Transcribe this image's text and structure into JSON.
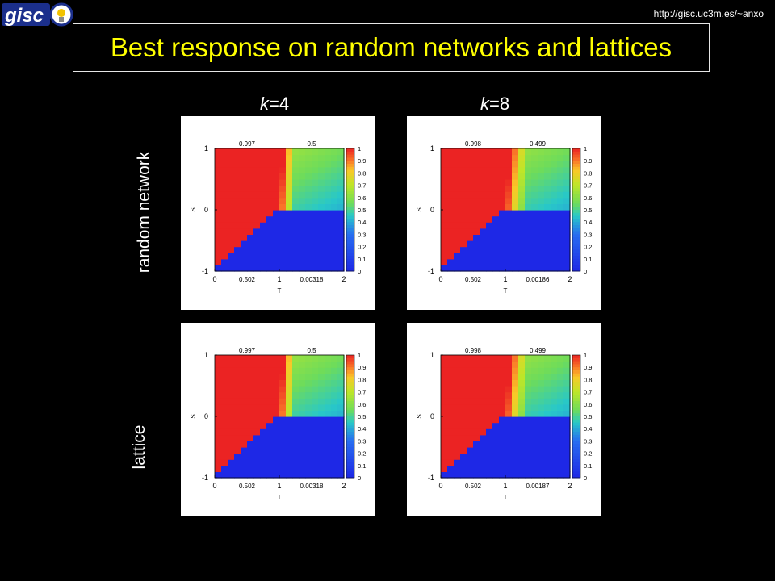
{
  "header": {
    "logo_text": "gisc",
    "url": "http://gisc.uc3m.es/~anxo",
    "title": "Best response on random networks and lattices"
  },
  "columns": [
    {
      "var": "k",
      "eq": "=4"
    },
    {
      "var": "k",
      "eq": "=8"
    }
  ],
  "rows": [
    "random network",
    "lattice"
  ],
  "colors": {
    "title": "#ffff00",
    "background": "#000000",
    "cooperate": "#ee2222",
    "defect": "#2233ee"
  },
  "chart_data": [
    {
      "type": "heatmap",
      "column": "k=4",
      "row": "random network",
      "xlabel": "T",
      "ylabel": "S",
      "xlim": [
        0,
        2
      ],
      "ylim": [
        -1,
        1
      ],
      "x_ticks": [
        "0",
        "1",
        "2"
      ],
      "y_ticks": [
        "-1",
        "0",
        "1"
      ],
      "quadrant_values": {
        "top_left": "0.997",
        "top_right": "0.5",
        "bottom_left": "0.502",
        "bottom_right": "0.00318"
      },
      "colorbar_ticks": [
        "1",
        "0.9",
        "0.8",
        "0.7",
        "0.6",
        "0.5",
        "0.4",
        "0.3",
        "0.2",
        "0.1",
        "0"
      ],
      "colorbar_range": [
        0,
        1
      ]
    },
    {
      "type": "heatmap",
      "column": "k=8",
      "row": "random network",
      "xlabel": "T",
      "ylabel": "S",
      "xlim": [
        0,
        2
      ],
      "ylim": [
        -1,
        1
      ],
      "x_ticks": [
        "0",
        "1",
        "2"
      ],
      "y_ticks": [
        "-1",
        "0",
        "1"
      ],
      "quadrant_values": {
        "top_left": "0.998",
        "top_right": "0.499",
        "bottom_left": "0.502",
        "bottom_right": "0.00186"
      },
      "colorbar_ticks": [
        "1",
        "0.9",
        "0.8",
        "0.7",
        "0.6",
        "0.5",
        "0.4",
        "0.3",
        "0.2",
        "0.1",
        "0"
      ],
      "colorbar_range": [
        0,
        1
      ]
    },
    {
      "type": "heatmap",
      "column": "k=4",
      "row": "lattice",
      "xlabel": "T",
      "ylabel": "S",
      "xlim": [
        0,
        2
      ],
      "ylim": [
        -1,
        1
      ],
      "x_ticks": [
        "0",
        "1",
        "2"
      ],
      "y_ticks": [
        "-1",
        "0",
        "1"
      ],
      "quadrant_values": {
        "top_left": "0.997",
        "top_right": "0.5",
        "bottom_left": "0.502",
        "bottom_right": "0.00318"
      },
      "colorbar_ticks": [
        "1",
        "0.9",
        "0.8",
        "0.7",
        "0.6",
        "0.5",
        "0.4",
        "0.3",
        "0.2",
        "0.1",
        "0"
      ],
      "colorbar_range": [
        0,
        1
      ]
    },
    {
      "type": "heatmap",
      "column": "k=8",
      "row": "lattice",
      "xlabel": "T",
      "ylabel": "S",
      "xlim": [
        0,
        2
      ],
      "ylim": [
        -1,
        1
      ],
      "x_ticks": [
        "0",
        "1",
        "2"
      ],
      "y_ticks": [
        "-1",
        "0",
        "1"
      ],
      "quadrant_values": {
        "top_left": "0.998",
        "top_right": "0.499",
        "bottom_left": "0.502",
        "bottom_right": "0.00187"
      },
      "colorbar_ticks": [
        "1",
        "0.9",
        "0.8",
        "0.7",
        "0.6",
        "0.5",
        "0.4",
        "0.3",
        "0.2",
        "0.1",
        "0"
      ],
      "colorbar_range": [
        0,
        1
      ]
    }
  ]
}
